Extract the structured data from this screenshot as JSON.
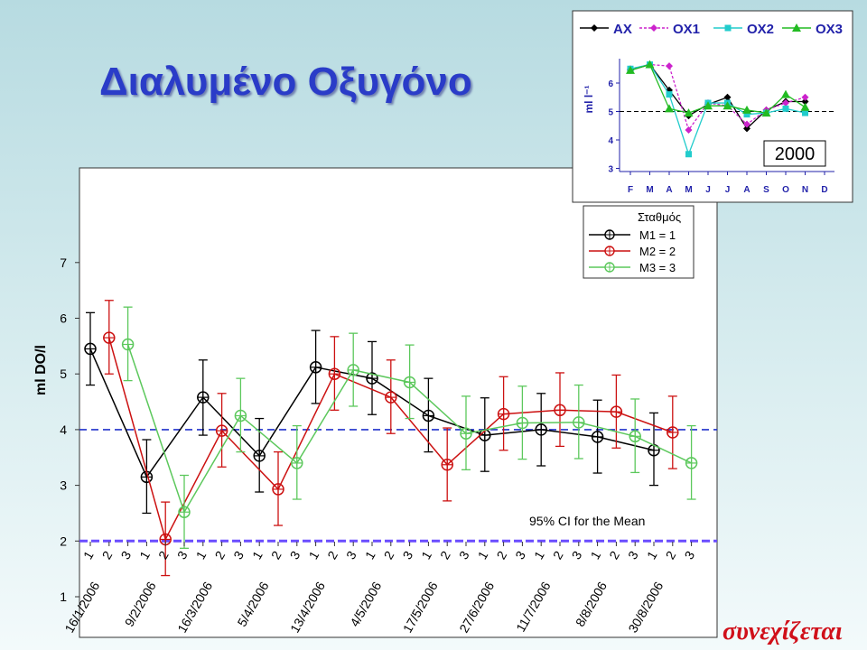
{
  "slide": {
    "title": "Διαλυμένο Οξυγόνο",
    "continued_label": "συνεχίζεται"
  },
  "chart_data": [
    {
      "type": "line",
      "ylabel": "ml DO/l",
      "ylim": [
        1,
        7
      ],
      "yticks": [
        1,
        2,
        3,
        4,
        5,
        6,
        7
      ],
      "annotation": "95% CI for the Mean",
      "legend": {
        "title": "Σταθμός",
        "entries": [
          "M1 = 1",
          "M2 = 2",
          "M3 = 3"
        ],
        "placement": "top-right"
      },
      "dates": [
        "16/1/2006",
        "9/2/2006",
        "16/3/2006",
        "5/4/2006",
        "13/4/2006",
        "4/5/2006",
        "17/5/2006",
        "27/6/2006",
        "11/7/2006",
        "8/8/2006",
        "30/8/2006"
      ],
      "station_ticks": [
        "1",
        "2",
        "3"
      ],
      "reference_lines": [
        {
          "y": 4,
          "color": "#2233cc",
          "style": "dashed"
        },
        {
          "y": 2,
          "color": "#6a4cff",
          "style": "dashed-thick"
        }
      ],
      "series": [
        {
          "name": "M1 = 1",
          "color": "#000000",
          "values": [
            5.45,
            3.15,
            4.58,
            3.53,
            5.12,
            4.92,
            4.25,
            3.9,
            4.0,
            3.87,
            3.63
          ],
          "lower": [
            4.8,
            2.5,
            3.9,
            2.88,
            4.47,
            4.27,
            3.6,
            3.25,
            3.35,
            3.22,
            3.0
          ],
          "upper": [
            6.1,
            3.82,
            5.25,
            4.2,
            5.78,
            5.58,
            4.92,
            4.57,
            4.65,
            4.53,
            4.3
          ]
        },
        {
          "name": "M2 = 2",
          "color": "#cc1111",
          "values": [
            5.65,
            2.03,
            3.98,
            2.93,
            5.0,
            4.58,
            3.37,
            4.28,
            4.35,
            4.32,
            3.95
          ],
          "lower": [
            5.0,
            1.38,
            3.33,
            2.28,
            4.35,
            3.93,
            2.72,
            3.63,
            3.7,
            3.67,
            3.3
          ],
          "upper": [
            6.32,
            2.7,
            4.65,
            3.6,
            5.67,
            5.25,
            4.03,
            4.95,
            5.02,
            4.98,
            4.6
          ]
        },
        {
          "name": "M3 = 3",
          "color": "#5cc85c",
          "values": [
            5.53,
            2.52,
            4.25,
            3.4,
            5.07,
            4.85,
            3.93,
            4.12,
            4.13,
            3.88,
            3.4
          ],
          "lower": [
            4.88,
            1.87,
            3.6,
            2.75,
            4.42,
            4.2,
            3.28,
            3.47,
            3.48,
            3.23,
            2.75
          ],
          "upper": [
            6.2,
            3.18,
            4.92,
            4.07,
            5.73,
            5.52,
            4.6,
            4.78,
            4.8,
            4.55,
            4.07
          ]
        }
      ]
    },
    {
      "type": "line",
      "title": "2000",
      "ylabel": "ml l⁻¹",
      "ylim": [
        3,
        7
      ],
      "yticks": [
        3,
        4,
        5,
        6
      ],
      "categories": [
        "F",
        "M",
        "A",
        "M",
        "J",
        "J",
        "A",
        "S",
        "O",
        "N",
        "D"
      ],
      "reference_line": {
        "y": 5,
        "style": "dashed"
      },
      "legend": {
        "placement": "top"
      },
      "series": [
        {
          "name": "AX",
          "color": "#000000",
          "marker": "diamond",
          "values": [
            6.45,
            6.65,
            5.75,
            4.85,
            5.25,
            5.5,
            4.4,
            5.05,
            5.35,
            5.35,
            null
          ]
        },
        {
          "name": "OX1",
          "color": "#cc22cc",
          "marker": "diamond",
          "values": [
            6.5,
            6.65,
            6.6,
            4.35,
            5.3,
            5.2,
            4.55,
            5.05,
            5.3,
            5.5,
            null
          ]
        },
        {
          "name": "OX2",
          "color": "#22cccc",
          "marker": "square",
          "values": [
            6.5,
            6.65,
            5.6,
            3.5,
            5.3,
            5.3,
            4.9,
            4.95,
            5.1,
            4.95,
            null
          ]
        },
        {
          "name": "OX3",
          "color": "#22bb22",
          "marker": "triangle",
          "values": [
            6.45,
            6.65,
            5.1,
            4.95,
            5.2,
            5.2,
            5.05,
            4.95,
            5.6,
            5.15,
            null
          ]
        }
      ]
    }
  ]
}
